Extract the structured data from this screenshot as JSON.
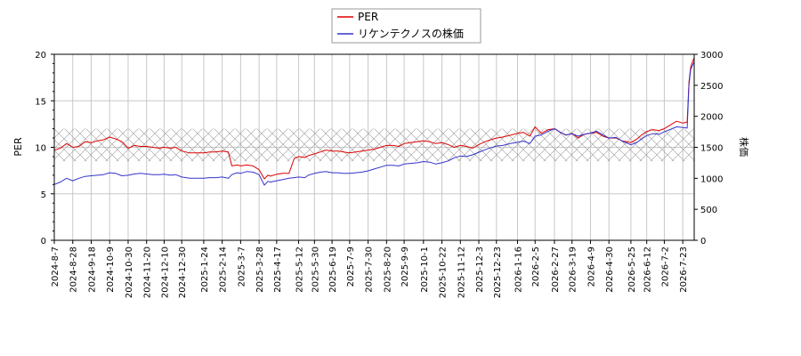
{
  "chart_data": {
    "type": "line",
    "title": "",
    "xlabel": "",
    "ylabel_left": "PER",
    "ylabel_right": "株価",
    "ylim_left": [
      0,
      20
    ],
    "ylim_right": [
      0,
      3000
    ],
    "yticks_left": [
      0,
      5,
      10,
      15,
      20
    ],
    "yticks_right": [
      0,
      500,
      1000,
      1500,
      2000,
      2500,
      3000
    ],
    "xlim": [
      "2024-08-07",
      "2026-08-05"
    ],
    "x_tick_labels": [
      "2024-8-7",
      "2024-8-28",
      "2024-9-18",
      "2024-10-9",
      "2024-10-30",
      "2024-11-20",
      "2024-12-10",
      "2024-12-30",
      "2025-1-24",
      "2025-2-14",
      "2025-3-7",
      "2025-3-28",
      "2025-4-17",
      "2025-5-12",
      "2025-5-30",
      "2025-6-19",
      "2025-7-9",
      "2025-7-30",
      "2025-8-20",
      "2025-9-9",
      "2025-10-1",
      "2025-10-22",
      "2025-11-12",
      "2025-12-3",
      "2025-12-23",
      "2026-1-16",
      "2026-2-5",
      "2026-2-27",
      "2026-3-19",
      "2026-4-9",
      "2026-4-30",
      "2026-5-25",
      "2026-6-12",
      "2026-7-2",
      "2026-7-23"
    ],
    "x_tick_dates": [
      "2024-08-07",
      "2024-08-28",
      "2024-09-18",
      "2024-10-09",
      "2024-10-30",
      "2024-11-20",
      "2024-12-10",
      "2024-12-30",
      "2025-01-24",
      "2025-02-14",
      "2025-03-07",
      "2025-03-28",
      "2025-04-17",
      "2025-05-12",
      "2025-05-30",
      "2025-06-19",
      "2025-07-09",
      "2025-07-30",
      "2025-08-20",
      "2025-09-09",
      "2025-10-01",
      "2025-10-22",
      "2025-11-12",
      "2025-12-03",
      "2025-12-23",
      "2026-01-16",
      "2026-02-05",
      "2026-02-27",
      "2026-03-19",
      "2026-04-09",
      "2026-04-30",
      "2026-05-25",
      "2026-06-12",
      "2026-07-02",
      "2026-07-23"
    ],
    "grid": true,
    "legend_position": "top-center",
    "band": {
      "axis": "left",
      "from": 8.5,
      "to": 12,
      "pattern": "crosshatch"
    },
    "series": [
      {
        "name": "PER",
        "axis": "left",
        "color": "#dd0000",
        "points": [
          [
            "2024-08-07",
            9.7
          ],
          [
            "2024-08-14",
            9.9
          ],
          [
            "2024-08-21",
            10.4
          ],
          [
            "2024-08-28",
            10.0
          ],
          [
            "2024-09-04",
            10.1
          ],
          [
            "2024-09-11",
            10.6
          ],
          [
            "2024-09-18",
            10.5
          ],
          [
            "2024-09-25",
            10.7
          ],
          [
            "2024-10-02",
            10.8
          ],
          [
            "2024-10-09",
            11.1
          ],
          [
            "2024-10-16",
            10.9
          ],
          [
            "2024-10-23",
            10.6
          ],
          [
            "2024-10-30",
            9.9
          ],
          [
            "2024-11-06",
            10.2
          ],
          [
            "2024-11-13",
            10.1
          ],
          [
            "2024-11-20",
            10.1
          ],
          [
            "2024-11-27",
            10.0
          ],
          [
            "2024-12-04",
            9.9
          ],
          [
            "2024-12-10",
            10.0
          ],
          [
            "2024-12-17",
            9.9
          ],
          [
            "2024-12-23",
            10.0
          ],
          [
            "2024-12-30",
            9.6
          ],
          [
            "2025-01-08",
            9.4
          ],
          [
            "2025-01-16",
            9.4
          ],
          [
            "2025-01-24",
            9.4
          ],
          [
            "2025-01-31",
            9.5
          ],
          [
            "2025-02-07",
            9.5
          ],
          [
            "2025-02-14",
            9.6
          ],
          [
            "2025-02-21",
            9.5
          ],
          [
            "2025-02-25",
            8.0
          ],
          [
            "2025-03-03",
            8.1
          ],
          [
            "2025-03-07",
            8.0
          ],
          [
            "2025-03-14",
            8.1
          ],
          [
            "2025-03-21",
            8.0
          ],
          [
            "2025-03-28",
            7.6
          ],
          [
            "2025-04-03",
            6.6
          ],
          [
            "2025-04-07",
            7.0
          ],
          [
            "2025-04-10",
            6.9
          ],
          [
            "2025-04-17",
            7.1
          ],
          [
            "2025-04-24",
            7.2
          ],
          [
            "2025-05-01",
            7.2
          ],
          [
            "2025-05-07",
            8.8
          ],
          [
            "2025-05-12",
            9.0
          ],
          [
            "2025-05-19",
            8.9
          ],
          [
            "2025-05-23",
            9.1
          ],
          [
            "2025-05-30",
            9.3
          ],
          [
            "2025-06-06",
            9.5
          ],
          [
            "2025-06-12",
            9.7
          ],
          [
            "2025-06-19",
            9.6
          ],
          [
            "2025-06-26",
            9.6
          ],
          [
            "2025-07-02",
            9.5
          ],
          [
            "2025-07-09",
            9.4
          ],
          [
            "2025-07-16",
            9.5
          ],
          [
            "2025-07-23",
            9.6
          ],
          [
            "2025-07-30",
            9.7
          ],
          [
            "2025-08-06",
            9.8
          ],
          [
            "2025-08-13",
            10.0
          ],
          [
            "2025-08-20",
            10.2
          ],
          [
            "2025-08-27",
            10.2
          ],
          [
            "2025-09-03",
            10.1
          ],
          [
            "2025-09-09",
            10.4
          ],
          [
            "2025-09-16",
            10.5
          ],
          [
            "2025-09-24",
            10.6
          ],
          [
            "2025-10-01",
            10.7
          ],
          [
            "2025-10-08",
            10.6
          ],
          [
            "2025-10-15",
            10.4
          ],
          [
            "2025-10-22",
            10.5
          ],
          [
            "2025-10-29",
            10.3
          ],
          [
            "2025-11-05",
            10.0
          ],
          [
            "2025-11-12",
            10.2
          ],
          [
            "2025-11-19",
            10.1
          ],
          [
            "2025-11-26",
            9.9
          ],
          [
            "2025-12-03",
            10.3
          ],
          [
            "2025-12-10",
            10.6
          ],
          [
            "2025-12-16",
            10.8
          ],
          [
            "2025-12-23",
            11.0
          ],
          [
            "2025-12-30",
            11.1
          ],
          [
            "2026-01-08",
            11.3
          ],
          [
            "2026-01-16",
            11.5
          ],
          [
            "2026-01-23",
            11.6
          ],
          [
            "2026-01-30",
            11.2
          ],
          [
            "2026-02-05",
            12.2
          ],
          [
            "2026-02-12",
            11.5
          ],
          [
            "2026-02-20",
            11.9
          ],
          [
            "2026-02-27",
            12.0
          ],
          [
            "2026-03-06",
            11.6
          ],
          [
            "2026-03-12",
            11.3
          ],
          [
            "2026-03-19",
            11.5
          ],
          [
            "2026-03-26",
            11.0
          ],
          [
            "2026-04-02",
            11.4
          ],
          [
            "2026-04-09",
            11.5
          ],
          [
            "2026-04-16",
            11.6
          ],
          [
            "2026-04-23",
            11.2
          ],
          [
            "2026-04-30",
            11.0
          ],
          [
            "2026-05-08",
            11.0
          ],
          [
            "2026-05-15",
            10.7
          ],
          [
            "2026-05-25",
            10.5
          ],
          [
            "2026-06-01",
            10.9
          ],
          [
            "2026-06-06",
            11.3
          ],
          [
            "2026-06-12",
            11.7
          ],
          [
            "2026-06-19",
            11.9
          ],
          [
            "2026-06-26",
            11.8
          ],
          [
            "2026-07-02",
            12.0
          ],
          [
            "2026-07-09",
            12.4
          ],
          [
            "2026-07-16",
            12.8
          ],
          [
            "2026-07-23",
            12.6
          ],
          [
            "2026-07-28",
            12.7
          ],
          [
            "2026-07-30",
            17.0
          ],
          [
            "2026-08-01",
            18.6
          ],
          [
            "2026-08-03",
            19.2
          ],
          [
            "2026-08-05",
            19.6
          ]
        ]
      },
      {
        "name": "リケンテクノスの株価",
        "axis": "right",
        "color": "#3333cc",
        "points": [
          [
            "2024-08-07",
            900
          ],
          [
            "2024-08-14",
            940
          ],
          [
            "2024-08-21",
            1000
          ],
          [
            "2024-08-28",
            960
          ],
          [
            "2024-09-04",
            1000
          ],
          [
            "2024-09-11",
            1030
          ],
          [
            "2024-09-18",
            1040
          ],
          [
            "2024-09-25",
            1050
          ],
          [
            "2024-10-02",
            1060
          ],
          [
            "2024-10-09",
            1090
          ],
          [
            "2024-10-16",
            1080
          ],
          [
            "2024-10-23",
            1040
          ],
          [
            "2024-10-30",
            1050
          ],
          [
            "2024-11-06",
            1070
          ],
          [
            "2024-11-13",
            1080
          ],
          [
            "2024-11-20",
            1070
          ],
          [
            "2024-11-27",
            1060
          ],
          [
            "2024-12-04",
            1060
          ],
          [
            "2024-12-10",
            1065
          ],
          [
            "2024-12-17",
            1050
          ],
          [
            "2024-12-23",
            1060
          ],
          [
            "2024-12-30",
            1020
          ],
          [
            "2025-01-08",
            1000
          ],
          [
            "2025-01-16",
            1000
          ],
          [
            "2025-01-24",
            1000
          ],
          [
            "2025-01-31",
            1010
          ],
          [
            "2025-02-07",
            1010
          ],
          [
            "2025-02-14",
            1020
          ],
          [
            "2025-02-21",
            1000
          ],
          [
            "2025-02-25",
            1060
          ],
          [
            "2025-03-03",
            1090
          ],
          [
            "2025-03-07",
            1080
          ],
          [
            "2025-03-14",
            1110
          ],
          [
            "2025-03-21",
            1100
          ],
          [
            "2025-03-28",
            1060
          ],
          [
            "2025-04-03",
            890
          ],
          [
            "2025-04-07",
            950
          ],
          [
            "2025-04-10",
            940
          ],
          [
            "2025-04-17",
            960
          ],
          [
            "2025-04-24",
            980
          ],
          [
            "2025-05-01",
            1000
          ],
          [
            "2025-05-07",
            1010
          ],
          [
            "2025-05-12",
            1020
          ],
          [
            "2025-05-19",
            1010
          ],
          [
            "2025-05-23",
            1050
          ],
          [
            "2025-05-30",
            1080
          ],
          [
            "2025-06-06",
            1100
          ],
          [
            "2025-06-12",
            1110
          ],
          [
            "2025-06-19",
            1090
          ],
          [
            "2025-06-26",
            1090
          ],
          [
            "2025-07-02",
            1080
          ],
          [
            "2025-07-09",
            1080
          ],
          [
            "2025-07-16",
            1090
          ],
          [
            "2025-07-23",
            1100
          ],
          [
            "2025-07-30",
            1120
          ],
          [
            "2025-08-06",
            1150
          ],
          [
            "2025-08-13",
            1180
          ],
          [
            "2025-08-20",
            1210
          ],
          [
            "2025-08-27",
            1210
          ],
          [
            "2025-09-03",
            1200
          ],
          [
            "2025-09-09",
            1230
          ],
          [
            "2025-09-16",
            1240
          ],
          [
            "2025-09-24",
            1250
          ],
          [
            "2025-10-01",
            1270
          ],
          [
            "2025-10-08",
            1260
          ],
          [
            "2025-10-15",
            1230
          ],
          [
            "2025-10-22",
            1250
          ],
          [
            "2025-10-29",
            1280
          ],
          [
            "2025-11-05",
            1330
          ],
          [
            "2025-11-12",
            1360
          ],
          [
            "2025-11-19",
            1350
          ],
          [
            "2025-11-26",
            1380
          ],
          [
            "2025-12-03",
            1420
          ],
          [
            "2025-12-10",
            1460
          ],
          [
            "2025-12-16",
            1490
          ],
          [
            "2025-12-23",
            1520
          ],
          [
            "2025-12-30",
            1530
          ],
          [
            "2026-01-08",
            1560
          ],
          [
            "2026-01-16",
            1580
          ],
          [
            "2026-01-23",
            1600
          ],
          [
            "2026-01-30",
            1560
          ],
          [
            "2026-02-05",
            1680
          ],
          [
            "2026-02-12",
            1700
          ],
          [
            "2026-02-20",
            1760
          ],
          [
            "2026-02-27",
            1800
          ],
          [
            "2026-03-06",
            1740
          ],
          [
            "2026-03-12",
            1700
          ],
          [
            "2026-03-19",
            1720
          ],
          [
            "2026-03-26",
            1680
          ],
          [
            "2026-04-02",
            1710
          ],
          [
            "2026-04-09",
            1730
          ],
          [
            "2026-04-16",
            1760
          ],
          [
            "2026-04-23",
            1700
          ],
          [
            "2026-04-30",
            1650
          ],
          [
            "2026-05-08",
            1660
          ],
          [
            "2026-05-15",
            1600
          ],
          [
            "2026-05-25",
            1540
          ],
          [
            "2026-06-01",
            1580
          ],
          [
            "2026-06-06",
            1630
          ],
          [
            "2026-06-12",
            1690
          ],
          [
            "2026-06-19",
            1720
          ],
          [
            "2026-06-26",
            1710
          ],
          [
            "2026-07-02",
            1750
          ],
          [
            "2026-07-09",
            1790
          ],
          [
            "2026-07-16",
            1830
          ],
          [
            "2026-07-23",
            1820
          ],
          [
            "2026-07-28",
            1810
          ],
          [
            "2026-07-30",
            2500
          ],
          [
            "2026-08-01",
            2750
          ],
          [
            "2026-08-03",
            2820
          ],
          [
            "2026-08-05",
            2880
          ]
        ]
      }
    ]
  }
}
